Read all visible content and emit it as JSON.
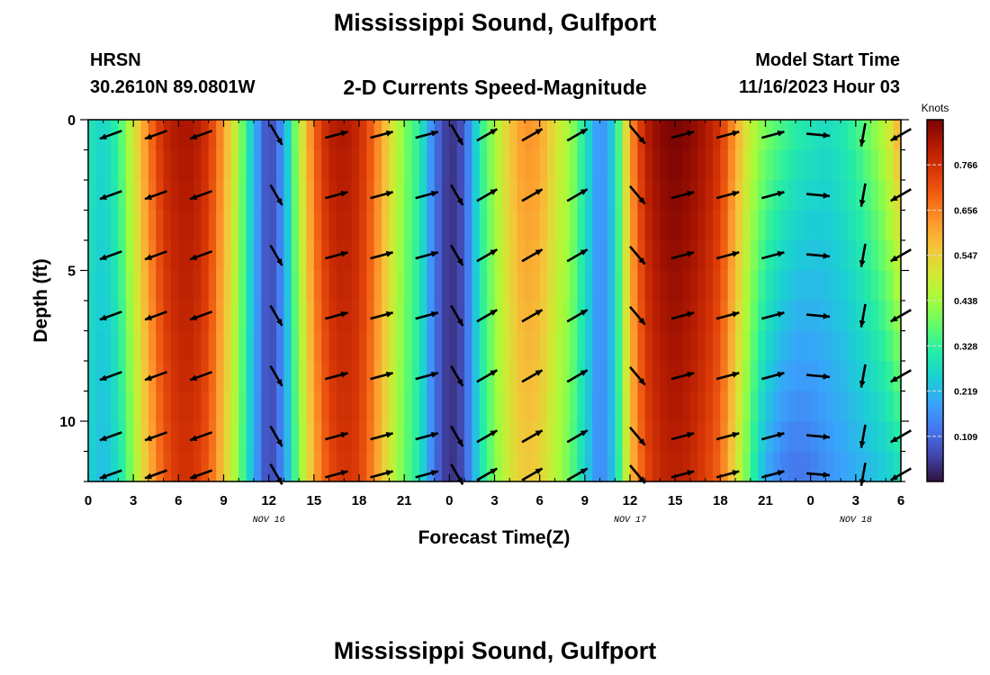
{
  "header": {
    "title": "Mississippi Sound, Gulfport",
    "station": "HRSN",
    "coordinates": "30.2610N  89.0801W",
    "subtitle": "2-D Currents Speed-Magnitude",
    "model_start_label": "Model Start Time",
    "model_start_value": "11/16/2023 Hour 03",
    "footer_title": "Mississippi Sound, Gulfport"
  },
  "chart_data": {
    "type": "heatmap",
    "title": "2-D Currents Speed-Magnitude",
    "xlabel": "Forecast Time(Z)",
    "ylabel": "Depth (ft)",
    "x_range_hours": [
      0,
      54
    ],
    "x_tick_labels": [
      "0",
      "3",
      "6",
      "9",
      "12",
      "15",
      "18",
      "21",
      "0",
      "3",
      "6",
      "9",
      "12",
      "15",
      "18",
      "21",
      "0",
      "3",
      "6"
    ],
    "date_labels": [
      {
        "label": "NOV 16",
        "hour": 12
      },
      {
        "label": "NOV 17",
        "hour": 36
      },
      {
        "label": "NOV 18",
        "hour": 51
      }
    ],
    "y_range_ft": [
      0,
      12
    ],
    "y_ticks": [
      0,
      5,
      10
    ],
    "y_reversed": true,
    "colorbar": {
      "title": "Knots",
      "min": 0,
      "max": 0.875,
      "ticks": [
        0.109,
        0.219,
        0.328,
        0.438,
        0.547,
        0.656,
        0.766
      ],
      "colors": [
        "#30123b",
        "#4145ab",
        "#4675ed",
        "#39a2fc",
        "#1bcfd4",
        "#24eca6",
        "#61fc6c",
        "#a4fc3b",
        "#d1e834",
        "#f3c63a",
        "#fe9b2d",
        "#f36315",
        "#d93806",
        "#b11901",
        "#7a0402"
      ]
    },
    "speed_profile": {
      "hours": [
        0,
        1,
        2,
        3,
        4,
        5,
        6,
        7,
        8,
        9,
        10,
        11,
        12,
        13,
        14,
        15,
        16,
        17,
        18,
        19,
        20,
        21,
        22,
        23,
        24,
        25,
        26,
        27,
        28,
        29,
        30,
        31,
        32,
        33,
        34,
        35,
        36,
        37,
        38,
        39,
        40,
        41,
        42,
        43,
        44,
        45,
        46,
        47,
        48,
        49,
        50,
        51,
        52,
        53,
        54
      ],
      "surface_knots": [
        0.3,
        0.26,
        0.33,
        0.5,
        0.66,
        0.78,
        0.82,
        0.82,
        0.76,
        0.62,
        0.44,
        0.22,
        0.05,
        0.18,
        0.46,
        0.69,
        0.8,
        0.82,
        0.78,
        0.68,
        0.54,
        0.4,
        0.32,
        0.13,
        0.03,
        0.09,
        0.31,
        0.44,
        0.56,
        0.64,
        0.62,
        0.52,
        0.44,
        0.3,
        0.15,
        0.26,
        0.62,
        0.8,
        0.86,
        0.88,
        0.86,
        0.82,
        0.76,
        0.62,
        0.48,
        0.4,
        0.36,
        0.32,
        0.3,
        0.28,
        0.3,
        0.34,
        0.4,
        0.48,
        0.62
      ],
      "bottom_knots": [
        0.26,
        0.22,
        0.28,
        0.42,
        0.58,
        0.7,
        0.76,
        0.76,
        0.7,
        0.56,
        0.4,
        0.2,
        0.05,
        0.16,
        0.4,
        0.6,
        0.72,
        0.76,
        0.74,
        0.64,
        0.5,
        0.38,
        0.3,
        0.12,
        0.03,
        0.08,
        0.28,
        0.4,
        0.5,
        0.56,
        0.54,
        0.46,
        0.38,
        0.26,
        0.14,
        0.24,
        0.56,
        0.72,
        0.78,
        0.8,
        0.78,
        0.74,
        0.68,
        0.52,
        0.34,
        0.2,
        0.14,
        0.12,
        0.13,
        0.16,
        0.18,
        0.2,
        0.22,
        0.24,
        0.28
      ]
    },
    "vectors": {
      "hours": [
        1.5,
        4.5,
        7.5,
        12.5,
        16.5,
        19.5,
        22.5,
        24.5,
        26.5,
        29.5,
        32.5,
        36.5,
        39.5,
        42.5,
        45.5,
        48.5,
        51.5,
        54
      ],
      "depths_ft": [
        0.5,
        2.5,
        4.5,
        6.5,
        8.5,
        10.5,
        12
      ],
      "direction_deg": [
        250,
        250,
        250,
        150,
        75,
        75,
        75,
        150,
        60,
        60,
        60,
        140,
        75,
        75,
        75,
        95,
        190,
        240
      ]
    }
  }
}
